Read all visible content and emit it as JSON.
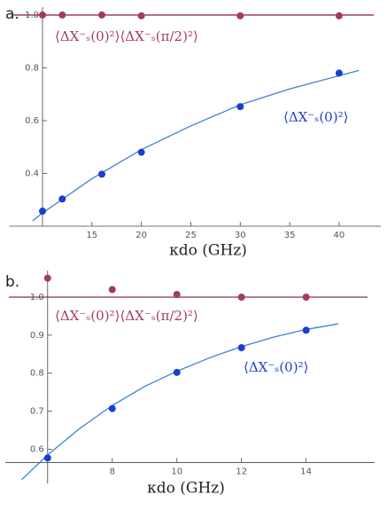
{
  "chart_data": [
    {
      "type": "scatter",
      "panel_label": "a.",
      "x_label": "κdo (GHz)",
      "xlim": [
        7,
        43.5
      ],
      "ylim": [
        0.2,
        1.03
      ],
      "axis_origin": [
        10,
        0.2
      ],
      "xticks": [
        15,
        20,
        25,
        30,
        35,
        40
      ],
      "yticks": [
        0.4,
        0.6,
        0.8,
        {
          "value": 1.0,
          "label": "1.0"
        }
      ],
      "series": [
        {
          "kind": "line",
          "color": "#8e2f52",
          "x": [
            7,
            43.5
          ],
          "values": [
            1.0,
            1.0
          ]
        },
        {
          "kind": "points",
          "color": "#a33a63",
          "x": [
            10,
            12,
            16,
            20,
            30,
            40
          ],
          "values": [
            1.0,
            1.0,
            1.0,
            0.997,
            0.997,
            0.997
          ]
        },
        {
          "kind": "line",
          "color": "#3f7fd8",
          "x": [
            9,
            10,
            15,
            20,
            25,
            30,
            35,
            40,
            42
          ],
          "values": [
            0.22,
            0.25,
            0.38,
            0.49,
            0.58,
            0.66,
            0.72,
            0.77,
            0.79
          ]
        },
        {
          "kind": "points",
          "color": "#1a3fd0",
          "x": [
            10,
            12,
            16,
            20,
            30,
            40
          ],
          "values": [
            0.257,
            0.303,
            0.397,
            0.48,
            0.653,
            0.78
          ]
        }
      ],
      "annotations": [
        {
          "text": "⟨ΔX⁻ₛ(0)²⟩⟨ΔX⁻ₛ(π/2)²⟩",
          "color": "#a33a63"
        },
        {
          "text": "⟨ΔX⁻ₛ(0)²⟩",
          "color": "#1a3fd0"
        }
      ]
    },
    {
      "type": "scatter",
      "panel_label": "b.",
      "x_label": "κdo (GHz)",
      "xlim": [
        4.8,
        15.9
      ],
      "ylim": [
        0.51,
        1.07
      ],
      "axis_origin": [
        6,
        0.565
      ],
      "xticks": [
        8,
        10,
        12,
        14
      ],
      "yticks": [
        0.6,
        0.7,
        0.8,
        0.9,
        {
          "value": 1.0,
          "label": "1.0"
        }
      ],
      "series": [
        {
          "kind": "line",
          "color": "#8e2f52",
          "x": [
            4.8,
            15.9
          ],
          "values": [
            1.0,
            1.0
          ]
        },
        {
          "kind": "points",
          "color": "#a33a63",
          "x": [
            6,
            8,
            10,
            12,
            14
          ],
          "values": [
            1.05,
            1.02,
            1.007,
            1.0,
            1.0
          ]
        },
        {
          "kind": "line",
          "color": "#3f7fd8",
          "x": [
            5.2,
            6,
            7,
            8,
            9,
            10,
            11,
            12,
            13,
            14,
            15
          ],
          "values": [
            0.52,
            0.585,
            0.655,
            0.715,
            0.765,
            0.805,
            0.84,
            0.87,
            0.895,
            0.915,
            0.93
          ]
        },
        {
          "kind": "points",
          "color": "#1a3fd0",
          "x": [
            6,
            8,
            10,
            12,
            14
          ],
          "values": [
            0.577,
            0.707,
            0.802,
            0.867,
            0.913
          ]
        }
      ],
      "annotations": [
        {
          "text": "⟨ΔX⁻ₛ(0)²⟩⟨ΔX⁻ₛ(π/2)²⟩",
          "color": "#a33a63"
        },
        {
          "text": "⟨ΔX⁻ₛ(0)²⟩",
          "color": "#1a3fd0"
        }
      ]
    }
  ]
}
